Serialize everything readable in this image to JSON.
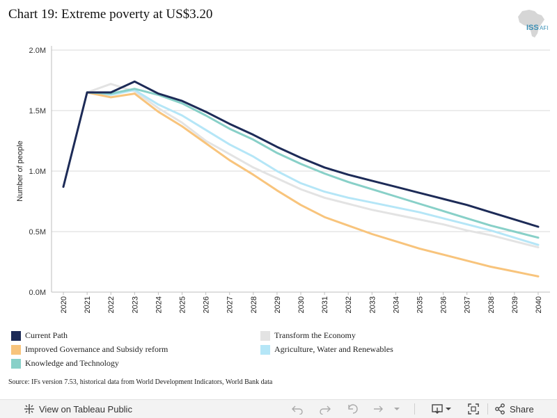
{
  "page": {
    "title": "Chart 19: Extreme poverty at US$3.20",
    "logo_text": "ISS",
    "logo_subtext": "AFI",
    "source": "Source: IFs version 7.53, historical data from World Development Indicators, World Bank data"
  },
  "chart_data": {
    "type": "line",
    "title": "Chart 19: Extreme poverty at US$3.20",
    "xlabel": "",
    "ylabel": "Number of people",
    "ylim": [
      0,
      2000000
    ],
    "ytick_labels": [
      "0.0M",
      "0.5M",
      "1.0M",
      "1.5M",
      "2.0M"
    ],
    "ytick_values": [
      0,
      500000,
      1000000,
      1500000,
      2000000
    ],
    "x": [
      "2020",
      "2021",
      "2022",
      "2023",
      "2024",
      "2025",
      "2026",
      "2027",
      "2028",
      "2029",
      "2030",
      "2031",
      "2032",
      "2033",
      "2034",
      "2035",
      "2036",
      "2037",
      "2038",
      "2039",
      "2040"
    ],
    "grid": true,
    "legend_placement": "bottom",
    "series": [
      {
        "name": "Transform the Economy",
        "color": "#e3e3e3",
        "values": [
          null,
          1650000,
          1720000,
          1660000,
          1520000,
          1400000,
          1250000,
          1140000,
          1030000,
          940000,
          850000,
          780000,
          730000,
          680000,
          640000,
          600000,
          560000,
          510000,
          470000,
          420000,
          370000
        ]
      },
      {
        "name": "Agriculture, Water and Renewables",
        "color": "#b5e6f7",
        "values": [
          null,
          1650000,
          1630000,
          1670000,
          1550000,
          1460000,
          1340000,
          1220000,
          1120000,
          1000000,
          900000,
          830000,
          780000,
          740000,
          700000,
          660000,
          610000,
          560000,
          510000,
          450000,
          390000
        ]
      },
      {
        "name": "Improved Governance and Subsidy reform",
        "color": "#f8c47c",
        "values": [
          null,
          1650000,
          1610000,
          1640000,
          1490000,
          1370000,
          1230000,
          1090000,
          970000,
          840000,
          720000,
          620000,
          550000,
          480000,
          420000,
          360000,
          310000,
          260000,
          210000,
          170000,
          130000
        ]
      },
      {
        "name": "Knowledge and Technology",
        "color": "#88d0c8",
        "values": [
          null,
          1650000,
          1640000,
          1680000,
          1630000,
          1560000,
          1460000,
          1350000,
          1260000,
          1150000,
          1060000,
          980000,
          910000,
          850000,
          790000,
          730000,
          670000,
          610000,
          550000,
          500000,
          450000
        ]
      },
      {
        "name": "Current Path",
        "color": "#1d2b57",
        "values": [
          870000,
          1650000,
          1650000,
          1740000,
          1640000,
          1580000,
          1490000,
          1390000,
          1300000,
          1200000,
          1110000,
          1030000,
          970000,
          920000,
          870000,
          820000,
          770000,
          720000,
          660000,
          600000,
          540000
        ]
      }
    ]
  },
  "legend": {
    "items": [
      {
        "label": "Current Path",
        "color": "#1d2b57"
      },
      {
        "label": "Transform the Economy",
        "color": "#e3e3e3"
      },
      {
        "label": "Improved Governance and Subsidy reform",
        "color": "#f8c47c"
      },
      {
        "label": "Agriculture, Water and Renewables",
        "color": "#b5e6f7"
      },
      {
        "label": "Knowledge and Technology",
        "color": "#88d0c8"
      }
    ]
  },
  "toolbar": {
    "view_label": "View on Tableau Public",
    "share_label": "Share",
    "icons": [
      "tableau-icon",
      "undo-icon",
      "redo-icon",
      "revert-icon",
      "refresh-icon",
      "dropdown-icon",
      "download-icon",
      "fullscreen-icon",
      "share-icon"
    ]
  }
}
